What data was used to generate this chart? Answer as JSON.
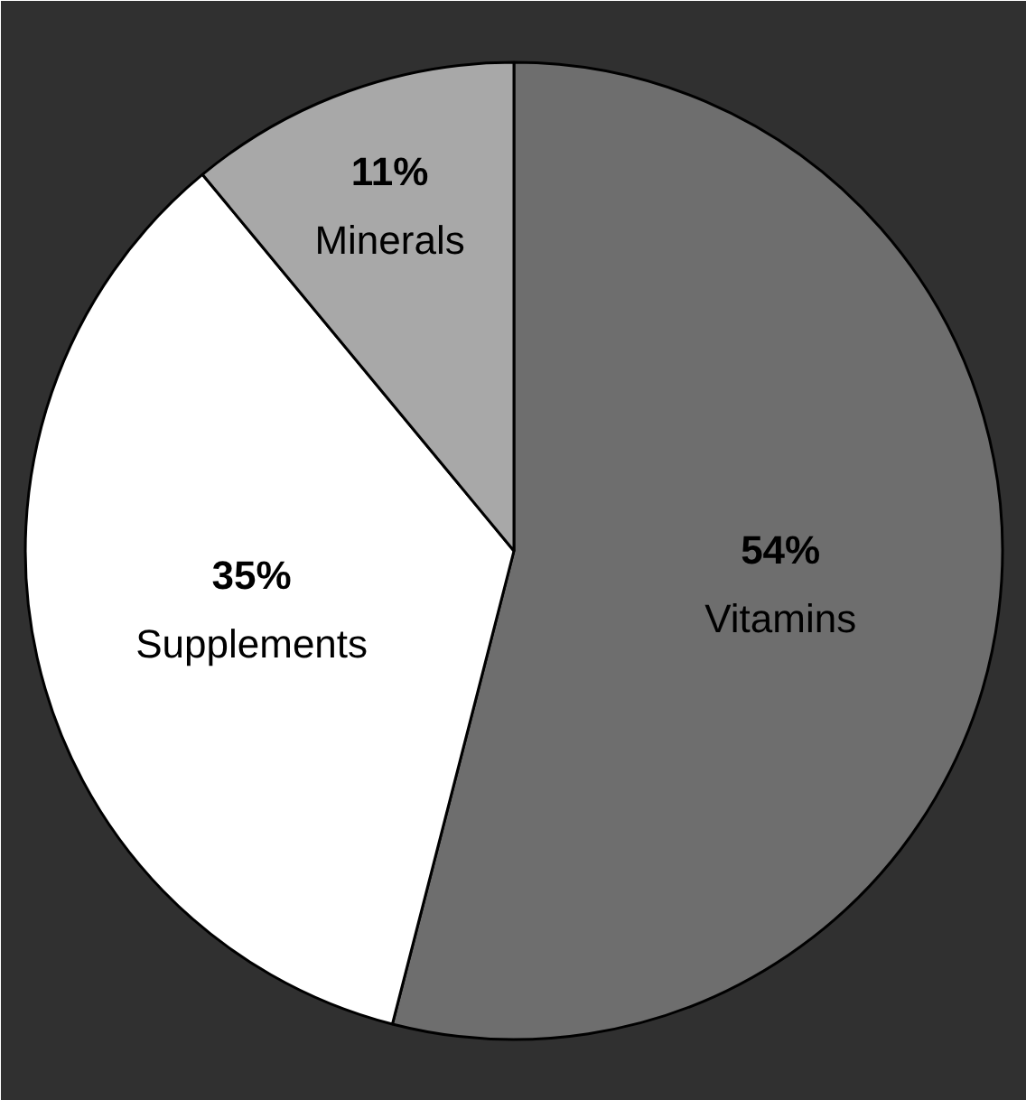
{
  "chart_data": {
    "type": "pie",
    "categories": [
      "Vitamins",
      "Supplements",
      "Minerals"
    ],
    "values": [
      54,
      35,
      11
    ],
    "colors": [
      "#6e6e6e",
      "#ffffff",
      "#a8a8a8"
    ],
    "value_labels": [
      "54%",
      "35%",
      "11%"
    ]
  }
}
